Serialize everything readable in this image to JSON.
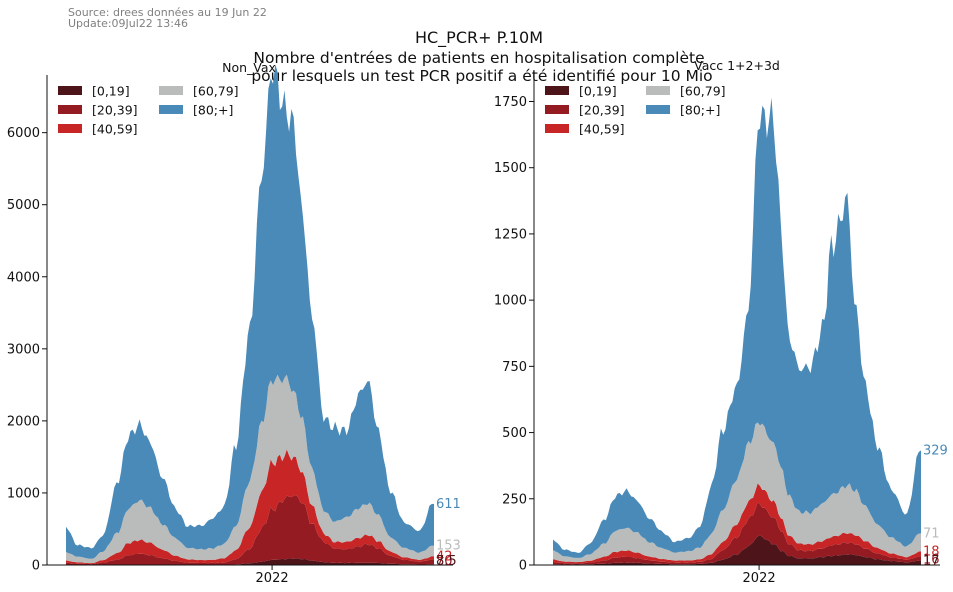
{
  "header": {
    "source_line": "Source: drees données au 19 Jun 22",
    "update_line": "Update:09Jul22 13:46",
    "title": "HC_PCR+ P.10M",
    "subtitle_line1": "Nombre d'entrées de patients en hospitalisation complète",
    "subtitle_line2": "pour lesquels un test PCR positif a été identifié pour 10 Mio"
  },
  "colors": {
    "[0,19]": "#4d1419",
    "[20,39]": "#951b22",
    "[40,59]": "#c82626",
    "[60,79]": "#b9bcba",
    "[80;+]": "#4a8ab8"
  },
  "chart_data": [
    {
      "type": "area",
      "stacked": true,
      "panel_title": "Non_Vax",
      "x_tick_labels": [
        "2022"
      ],
      "x_tick_position": 0.56,
      "ylim": [
        0,
        6800
      ],
      "yticks": [
        "0",
        "1000",
        "2000",
        "3000",
        "4000",
        "5000",
        "6000"
      ],
      "legend_position": "top-left",
      "legend": [
        "[0,19]",
        "[20,39]",
        "[40,59]",
        "[60,79]",
        "[80;+]"
      ],
      "x_fraction_keypoints": [
        0,
        0.03,
        0.07,
        0.1,
        0.14,
        0.17,
        0.2,
        0.23,
        0.26,
        0.3,
        0.33,
        0.37,
        0.4,
        0.43,
        0.46,
        0.5,
        0.53,
        0.56,
        0.6,
        0.62,
        0.64,
        0.67,
        0.7,
        0.73,
        0.76,
        0.8,
        0.82,
        0.85,
        0.88,
        0.92,
        0.96,
        1
      ],
      "series": [
        {
          "name": "[0,19]",
          "values": [
            5,
            4,
            3,
            3,
            4,
            6,
            7,
            6,
            5,
            4,
            3,
            3,
            3,
            4,
            8,
            25,
            45,
            70,
            85,
            90,
            85,
            60,
            40,
            30,
            28,
            30,
            32,
            28,
            18,
            10,
            7,
            8.5
          ]
        },
        {
          "name": "[20,39]",
          "values": [
            25,
            15,
            10,
            30,
            70,
            130,
            150,
            130,
            90,
            50,
            30,
            25,
            25,
            30,
            70,
            200,
            450,
            700,
            850,
            880,
            800,
            500,
            280,
            200,
            190,
            230,
            260,
            200,
            110,
            60,
            40,
            70
          ]
        },
        {
          "name": "[40,59]",
          "values": [
            30,
            18,
            12,
            35,
            90,
            170,
            190,
            170,
            120,
            70,
            45,
            40,
            45,
            60,
            120,
            300,
            500,
            650,
            600,
            520,
            420,
            250,
            120,
            90,
            100,
            120,
            130,
            100,
            60,
            35,
            25,
            42
          ]
        },
        {
          "name": "[60,79]",
          "values": [
            120,
            80,
            60,
            120,
            280,
            480,
            550,
            480,
            360,
            240,
            160,
            150,
            160,
            200,
            330,
            650,
            950,
            1150,
            1050,
            900,
            750,
            500,
            320,
            280,
            340,
            420,
            440,
            360,
            200,
            130,
            100,
            153
          ]
        },
        {
          "name": "[80;+]",
          "values": [
            350,
            160,
            150,
            220,
            700,
            1000,
            1050,
            900,
            650,
            400,
            300,
            330,
            420,
            520,
            1100,
            2100,
            3400,
            4300,
            3700,
            3700,
            2900,
            2100,
            1280,
            1300,
            1200,
            1600,
            1700,
            1150,
            650,
            350,
            300,
            611
          ]
        }
      ],
      "end_labels": [
        {
          "text": "611",
          "series": "[80;+]"
        },
        {
          "text": "153",
          "series": "[60,79]"
        },
        {
          "text": "42",
          "series": "[40,59]"
        },
        {
          "text": "70",
          "series": "[20,39]"
        },
        {
          "text": "8.5",
          "series": "[0,19]"
        }
      ]
    },
    {
      "type": "area",
      "stacked": true,
      "panel_title": "Vacc 1+2+3d",
      "x_tick_labels": [
        "2022"
      ],
      "x_tick_position": 0.56,
      "ylim": [
        0,
        1850
      ],
      "yticks": [
        "0",
        "250",
        "500",
        "750",
        "1000",
        "1250",
        "1500",
        "1750"
      ],
      "legend_position": "top-left",
      "legend": [
        "[0,19]",
        "[20,39]",
        "[40,59]",
        "[60,79]",
        "[80;+]"
      ],
      "x_fraction_keypoints": [
        0,
        0.03,
        0.07,
        0.1,
        0.14,
        0.17,
        0.2,
        0.23,
        0.26,
        0.3,
        0.33,
        0.37,
        0.4,
        0.43,
        0.46,
        0.5,
        0.53,
        0.56,
        0.6,
        0.62,
        0.64,
        0.67,
        0.7,
        0.73,
        0.76,
        0.8,
        0.82,
        0.85,
        0.88,
        0.92,
        0.96,
        1
      ],
      "series": [
        {
          "name": "[0,19]",
          "values": [
            3,
            2,
            2,
            3,
            5,
            8,
            9,
            8,
            6,
            4,
            3,
            3,
            4,
            8,
            20,
            40,
            70,
            110,
            80,
            55,
            35,
            25,
            25,
            30,
            35,
            40,
            38,
            30,
            22,
            15,
            10,
            17
          ]
        },
        {
          "name": "[20,39]",
          "values": [
            8,
            5,
            4,
            6,
            12,
            20,
            22,
            18,
            12,
            8,
            6,
            6,
            8,
            15,
            35,
            65,
            100,
            120,
            100,
            75,
            45,
            30,
            28,
            32,
            40,
            45,
            42,
            32,
            22,
            14,
            10,
            16
          ]
        },
        {
          "name": "[40,59]",
          "values": [
            10,
            6,
            5,
            7,
            14,
            22,
            24,
            20,
            14,
            10,
            8,
            8,
            10,
            18,
            30,
            50,
            65,
            70,
            60,
            48,
            32,
            25,
            25,
            28,
            32,
            36,
            34,
            28,
            20,
            14,
            10,
            18
          ]
        },
        {
          "name": "[60,79]",
          "values": [
            35,
            20,
            15,
            25,
            50,
            80,
            85,
            75,
            55,
            40,
            30,
            35,
            45,
            75,
            120,
            170,
            220,
            240,
            220,
            190,
            150,
            120,
            120,
            140,
            160,
            180,
            170,
            130,
            90,
            60,
            40,
            71
          ]
        },
        {
          "name": "[80;+]",
          "values": [
            40,
            25,
            20,
            40,
            90,
            130,
            140,
            120,
            90,
            60,
            40,
            50,
            80,
            180,
            300,
            350,
            500,
            1150,
            1220,
            900,
            600,
            540,
            550,
            650,
            950,
            1080,
            700,
            450,
            300,
            180,
            120,
            329
          ]
        }
      ],
      "end_labels": [
        {
          "text": "329",
          "series": "[80;+]"
        },
        {
          "text": "71",
          "series": "[60,79]"
        },
        {
          "text": "18",
          "series": "[40,59]"
        },
        {
          "text": "16",
          "series": "[20,39]"
        },
        {
          "text": "17",
          "series": "[0,19]"
        }
      ]
    }
  ]
}
